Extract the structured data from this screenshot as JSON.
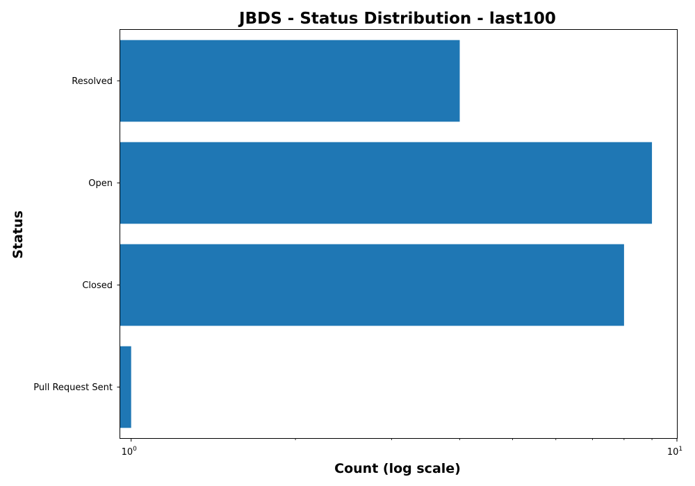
{
  "chart_data": {
    "type": "bar",
    "orientation": "horizontal",
    "title": "JBDS - Status Distribution - last100",
    "xlabel": "Count (log scale)",
    "ylabel": "Status",
    "x_scale": "log",
    "x_base": 10,
    "xlim": [
      0.955,
      10
    ],
    "x_ticks": [
      {
        "value": 1,
        "base": "10",
        "exponent": "0"
      },
      {
        "value": 10,
        "base": "10",
        "exponent": "1"
      }
    ],
    "categories": [
      "Pull Request Sent",
      "Closed",
      "Open",
      "Resolved"
    ],
    "values": [
      1,
      8,
      9,
      4
    ],
    "bar_color": "#1f77b4",
    "grid": false,
    "legend": "none"
  }
}
